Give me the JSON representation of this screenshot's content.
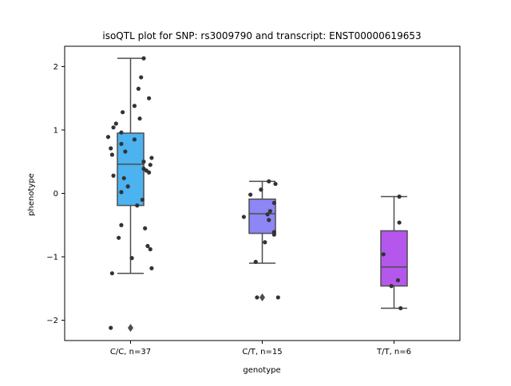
{
  "chart_data": {
    "type": "box",
    "title": "isoQTL plot for SNP: rs3009790 and transcript: ENST00000619653",
    "xlabel": "genotype",
    "ylabel": "phenotype",
    "ylim": [
      -2.32,
      2.32
    ],
    "yticks": [
      {
        "value": 2,
        "label": "2"
      },
      {
        "value": 1,
        "label": "1"
      },
      {
        "value": 0,
        "label": "0"
      },
      {
        "value": -1,
        "label": "−1"
      },
      {
        "value": -2,
        "label": "−2"
      }
    ],
    "grid": false,
    "categories": [
      "C/C, n=37",
      "C/T, n=15",
      "T/T, n=6"
    ],
    "boxes": [
      {
        "category": "C/C, n=37",
        "color": "#4cb2f0",
        "q1": -0.19,
        "median": 0.46,
        "q3": 0.95,
        "whisker_low": -1.26,
        "whisker_high": 2.13,
        "outliers": [
          -2.12
        ]
      },
      {
        "category": "C/T, n=15",
        "color": "#8d86f5",
        "q1": -0.63,
        "median": -0.32,
        "q3": -0.09,
        "whisker_low": -1.1,
        "whisker_high": 0.19,
        "outliers": [
          -1.64
        ]
      },
      {
        "category": "T/T, n=6",
        "color": "#b557ec",
        "q1": -1.46,
        "median": -1.16,
        "q3": -0.59,
        "whisker_low": -1.81,
        "whisker_high": -0.05,
        "outliers": []
      }
    ],
    "points": [
      [
        {
          "x": 0.1,
          "y": 2.13
        },
        {
          "x": 0.08,
          "y": 1.83
        },
        {
          "x": 0.06,
          "y": 1.65
        },
        {
          "x": 0.14,
          "y": 1.5
        },
        {
          "x": 0.03,
          "y": 1.38
        },
        {
          "x": -0.06,
          "y": 1.28
        },
        {
          "x": 0.07,
          "y": 1.18
        },
        {
          "x": -0.11,
          "y": 1.1
        },
        {
          "x": -0.13,
          "y": 1.04
        },
        {
          "x": -0.07,
          "y": 0.96
        },
        {
          "x": -0.17,
          "y": 0.89
        },
        {
          "x": 0.03,
          "y": 0.85
        },
        {
          "x": -0.07,
          "y": 0.78
        },
        {
          "x": -0.15,
          "y": 0.71
        },
        {
          "x": -0.04,
          "y": 0.66
        },
        {
          "x": -0.14,
          "y": 0.61
        },
        {
          "x": 0.16,
          "y": 0.56
        },
        {
          "x": 0.1,
          "y": 0.5
        },
        {
          "x": 0.15,
          "y": 0.45
        },
        {
          "x": 0.1,
          "y": 0.39
        },
        {
          "x": 0.12,
          "y": 0.36
        },
        {
          "x": 0.14,
          "y": 0.33
        },
        {
          "x": -0.13,
          "y": 0.28
        },
        {
          "x": -0.05,
          "y": 0.24
        },
        {
          "x": -0.02,
          "y": 0.11
        },
        {
          "x": -0.07,
          "y": 0.02
        },
        {
          "x": 0.09,
          "y": -0.1
        },
        {
          "x": 0.05,
          "y": -0.19
        },
        {
          "x": 0.11,
          "y": -0.55
        },
        {
          "x": -0.07,
          "y": -0.5
        },
        {
          "x": -0.09,
          "y": -0.7
        },
        {
          "x": 0.13,
          "y": -0.83
        },
        {
          "x": 0.15,
          "y": -0.88
        },
        {
          "x": 0.01,
          "y": -1.02
        },
        {
          "x": 0.16,
          "y": -1.18
        },
        {
          "x": -0.14,
          "y": -1.26
        },
        {
          "x": -0.15,
          "y": -2.12
        }
      ],
      [
        {
          "x": 0.05,
          "y": 0.19
        },
        {
          "x": 0.1,
          "y": 0.15
        },
        {
          "x": -0.01,
          "y": 0.06
        },
        {
          "x": -0.09,
          "y": -0.02
        },
        {
          "x": 0.09,
          "y": -0.15
        },
        {
          "x": 0.06,
          "y": -0.28
        },
        {
          "x": 0.04,
          "y": -0.33
        },
        {
          "x": -0.14,
          "y": -0.37
        },
        {
          "x": 0.05,
          "y": -0.42
        },
        {
          "x": 0.09,
          "y": -0.61
        },
        {
          "x": 0.09,
          "y": -0.65
        },
        {
          "x": 0.02,
          "y": -0.77
        },
        {
          "x": -0.05,
          "y": -1.08
        },
        {
          "x": 0.12,
          "y": -1.64
        },
        {
          "x": -0.04,
          "y": -1.64
        }
      ],
      [
        {
          "x": 0.04,
          "y": -0.05
        },
        {
          "x": 0.04,
          "y": -0.46
        },
        {
          "x": -0.08,
          "y": -0.96
        },
        {
          "x": 0.03,
          "y": -1.37
        },
        {
          "x": -0.02,
          "y": -1.46
        },
        {
          "x": 0.05,
          "y": -1.81
        }
      ]
    ],
    "point_color": "#333333",
    "box_edge_color": "#4d4d4d"
  }
}
